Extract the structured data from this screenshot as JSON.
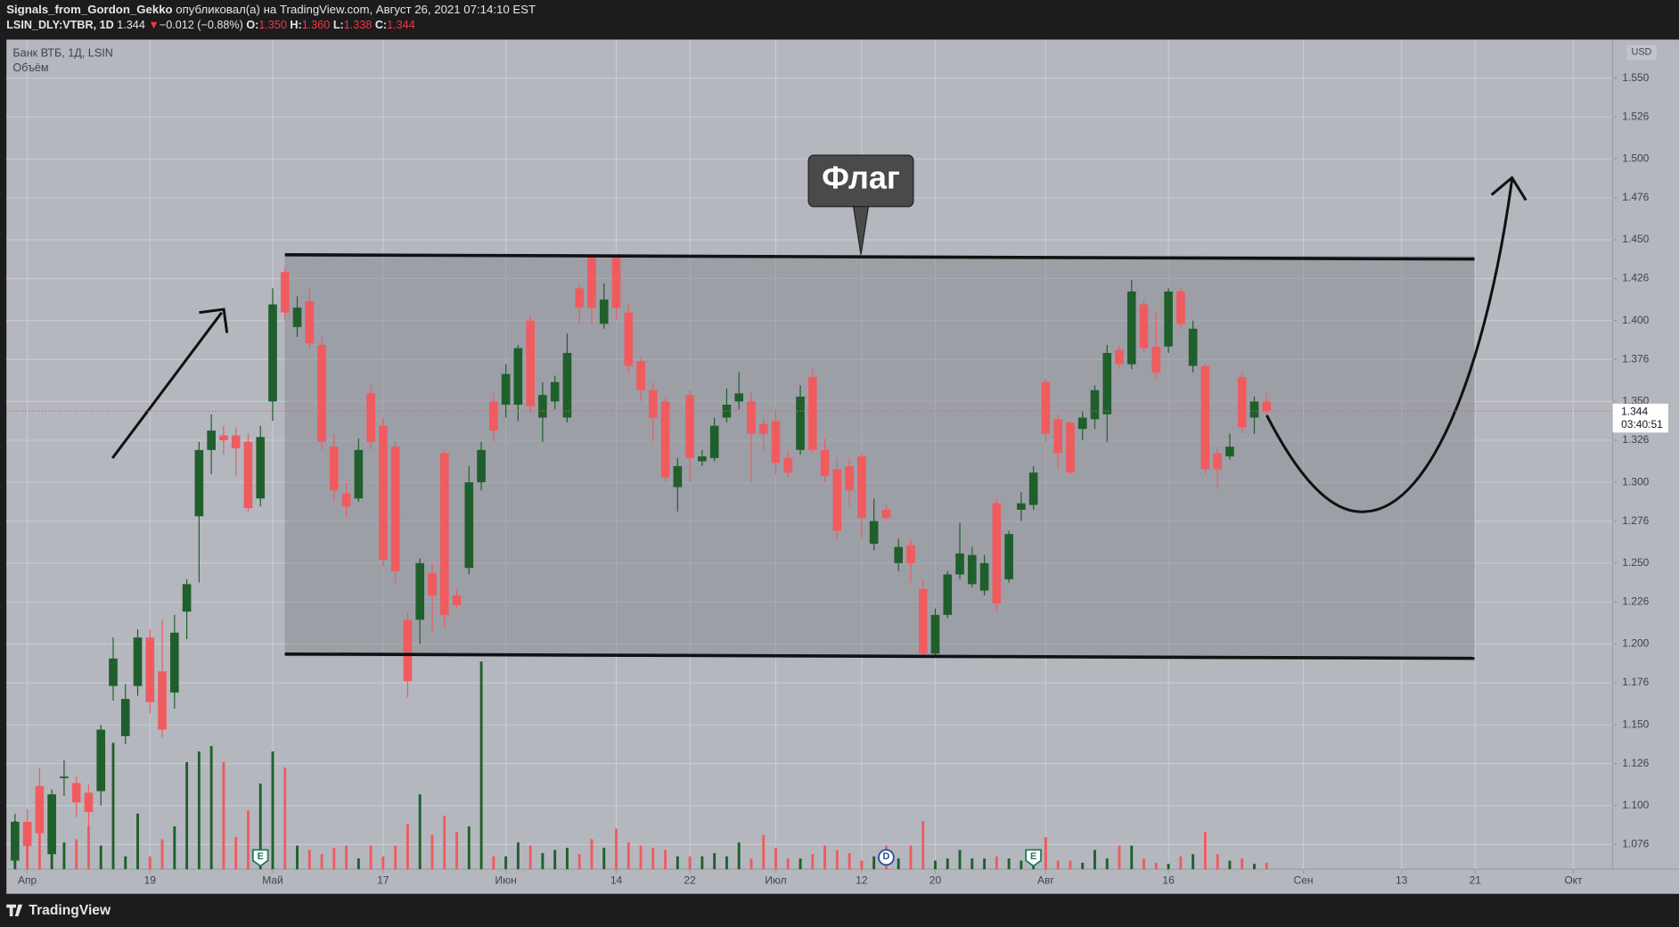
{
  "header": {
    "author": "Signals_from_Gordon_Gekko",
    "published": "опубликовал(а) на TradingView.com, Август 26, 2021 07:14:10 EST",
    "symbol": "LSIN_DLY:VTBR, 1D",
    "last": 1.344,
    "arrow": "▼",
    "change": "−0.012 (−0.88%)",
    "o_label": "O:",
    "o": {
      "value": 1.35,
      "label": "1.350"
    },
    "h_label": "H:",
    "h": {
      "value": 1.36,
      "label": "1.360"
    },
    "l_label": "L:",
    "l": 1.338,
    "c_label": "C:",
    "c": 1.344
  },
  "footer": {
    "brand": "TradingView"
  },
  "chart_data": {
    "type": "candlestick",
    "legend": "Банк ВТБ, 1Д, LSIN",
    "volume_name": "Объём",
    "currency": "USD",
    "annotation": "Флаг",
    "last_price": 1.344,
    "countdown": "03:40:51",
    "up_color": "#1f5f2c",
    "down_color": "#f05b5f",
    "grid": true,
    "xlim": [
      -0.7,
      130.2
    ],
    "ylim": [
      1.0607,
      1.5738
    ],
    "volume_ylim": [
      0,
      775
    ],
    "xticks": [
      {
        "value": 1,
        "label": "Апр"
      },
      {
        "value": 11,
        "label": "19"
      },
      {
        "value": 21,
        "label": "Май"
      },
      {
        "value": 30,
        "label": "17"
      },
      {
        "value": 40,
        "label": "Июн"
      },
      {
        "value": 49,
        "label": "14"
      },
      {
        "value": 55,
        "label": "22"
      },
      {
        "value": 62,
        "label": "Июл"
      },
      {
        "value": 69,
        "label": "12"
      },
      {
        "value": 75,
        "label": "20"
      },
      {
        "value": 84,
        "label": "Авг"
      },
      {
        "value": 94,
        "label": "16"
      },
      {
        "value": 105,
        "label": "Сен"
      },
      {
        "value": 113,
        "label": "13"
      },
      {
        "value": 119,
        "label": "21"
      },
      {
        "value": 127,
        "label": "Окт"
      }
    ],
    "yticks": [
      1.076,
      {
        "value": 1.1,
        "label": "1.100"
      },
      1.126,
      {
        "value": 1.15,
        "label": "1.150"
      },
      1.176,
      {
        "value": 1.2,
        "label": "1.200"
      },
      1.226,
      {
        "value": 1.25,
        "label": "1.250"
      },
      1.276,
      {
        "value": 1.3,
        "label": "1.300"
      },
      1.326,
      {
        "value": 1.35,
        "label": "1.350"
      },
      1.376,
      {
        "value": 1.4,
        "label": "1.400"
      },
      1.426,
      {
        "value": 1.45,
        "label": "1.450"
      },
      1.476,
      {
        "value": 1.5,
        "label": "1.500"
      },
      1.526,
      {
        "value": 1.55,
        "label": "1.550"
      }
    ],
    "events": [
      {
        "index": 20,
        "label": "E"
      },
      {
        "index": 71,
        "label": "D"
      },
      {
        "index": 83,
        "label": "E"
      }
    ],
    "open": [
      1.066,
      1.09,
      1.112,
      1.07,
      1.117,
      1.114,
      1.108,
      1.109,
      1.174,
      1.143,
      1.174,
      1.204,
      1.183,
      1.17,
      1.22,
      1.279,
      1.32,
      1.329,
      1.329,
      1.325,
      1.29,
      1.35,
      1.43,
      1.396,
      1.412,
      1.385,
      1.322,
      1.293,
      1.29,
      1.355,
      1.335,
      1.322,
      1.215,
      1.215,
      1.244,
      1.318,
      1.23,
      1.247,
      1.3,
      1.35,
      1.348,
      1.348,
      1.4,
      1.34,
      1.35,
      1.34,
      1.42,
      1.44,
      1.398,
      1.44,
      1.405,
      1.375,
      1.357,
      1.35,
      1.297,
      1.354,
      1.313,
      1.315,
      1.34,
      1.35,
      1.35,
      1.336,
      1.338,
      1.315,
      1.32,
      1.365,
      1.32,
      1.308,
      1.31,
      1.316,
      1.262,
      1.283,
      1.25,
      1.261,
      1.234,
      1.194,
      1.218,
      1.243,
      1.237,
      1.233,
      1.287,
      1.24,
      1.283,
      1.286,
      1.362,
      1.339,
      1.337,
      1.333,
      1.339,
      1.342,
      1.382,
      1.373,
      1.41,
      1.384,
      1.384,
      1.418,
      1.372,
      1.372,
      1.318,
      1.316,
      1.365,
      1.34,
      1.35
    ],
    "high": [
      1.095,
      1.098,
      1.123,
      1.11,
      1.128,
      1.118,
      1.113,
      1.15,
      1.204,
      1.175,
      1.209,
      1.209,
      1.215,
      1.218,
      1.24,
      1.325,
      1.342,
      1.335,
      1.334,
      1.33,
      1.335,
      1.42,
      1.433,
      1.415,
      1.42,
      1.39,
      1.33,
      1.3,
      1.327,
      1.36,
      1.34,
      1.325,
      1.22,
      1.253,
      1.25,
      1.32,
      1.234,
      1.31,
      1.325,
      1.355,
      1.373,
      1.385,
      1.403,
      1.362,
      1.366,
      1.392,
      1.423,
      1.441,
      1.423,
      1.441,
      1.41,
      1.378,
      1.362,
      1.352,
      1.315,
      1.357,
      1.32,
      1.34,
      1.358,
      1.368,
      1.356,
      1.34,
      1.345,
      1.32,
      1.36,
      1.37,
      1.327,
      1.315,
      1.315,
      1.318,
      1.29,
      1.286,
      1.265,
      1.265,
      1.24,
      1.222,
      1.245,
      1.275,
      1.26,
      1.255,
      1.29,
      1.27,
      1.294,
      1.31,
      1.364,
      1.342,
      1.338,
      1.344,
      1.36,
      1.385,
      1.385,
      1.425,
      1.413,
      1.405,
      1.42,
      1.42,
      1.4,
      1.374,
      1.322,
      1.33,
      1.368,
      1.353,
      1.355
    ],
    "low": [
      1.062,
      1.068,
      1.075,
      1.062,
      1.106,
      1.093,
      1.085,
      1.1,
      1.165,
      1.138,
      1.168,
      1.157,
      1.142,
      1.16,
      1.203,
      1.238,
      1.305,
      1.317,
      1.304,
      1.282,
      1.285,
      1.338,
      1.4,
      1.39,
      1.382,
      1.32,
      1.288,
      1.278,
      1.288,
      1.32,
      1.248,
      1.238,
      1.167,
      1.2,
      1.208,
      1.21,
      1.222,
      1.243,
      1.295,
      1.325,
      1.34,
      1.338,
      1.343,
      1.325,
      1.345,
      1.337,
      1.398,
      1.397,
      1.395,
      1.4,
      1.368,
      1.35,
      1.325,
      1.3,
      1.282,
      1.3,
      1.31,
      1.313,
      1.337,
      1.345,
      1.3,
      1.32,
      1.305,
      1.303,
      1.317,
      1.318,
      1.3,
      1.265,
      1.285,
      1.265,
      1.258,
      1.276,
      1.245,
      1.238,
      1.192,
      1.193,
      1.216,
      1.24,
      1.235,
      1.23,
      1.22,
      1.238,
      1.276,
      1.283,
      1.325,
      1.308,
      1.305,
      1.326,
      1.333,
      1.325,
      1.37,
      1.37,
      1.38,
      1.364,
      1.38,
      1.395,
      1.368,
      1.305,
      1.296,
      1.314,
      1.33,
      1.33,
      1.34
    ],
    "close": [
      1.09,
      1.075,
      1.083,
      1.107,
      1.118,
      1.102,
      1.096,
      1.147,
      1.191,
      1.166,
      1.204,
      1.164,
      1.147,
      1.207,
      1.237,
      1.32,
      1.332,
      1.326,
      1.321,
      1.284,
      1.328,
      1.41,
      1.405,
      1.408,
      1.386,
      1.325,
      1.295,
      1.285,
      1.32,
      1.325,
      1.252,
      1.245,
      1.177,
      1.25,
      1.23,
      1.218,
      1.224,
      1.3,
      1.32,
      1.332,
      1.367,
      1.383,
      1.347,
      1.354,
      1.362,
      1.38,
      1.408,
      1.408,
      1.413,
      1.408,
      1.372,
      1.357,
      1.34,
      1.303,
      1.31,
      1.315,
      1.316,
      1.335,
      1.348,
      1.355,
      1.33,
      1.33,
      1.312,
      1.306,
      1.353,
      1.32,
      1.304,
      1.27,
      1.295,
      1.278,
      1.276,
      1.278,
      1.26,
      1.25,
      1.194,
      1.218,
      1.243,
      1.256,
      1.255,
      1.25,
      1.225,
      1.268,
      1.287,
      1.306,
      1.33,
      1.318,
      1.306,
      1.34,
      1.357,
      1.38,
      1.373,
      1.418,
      1.383,
      1.368,
      1.418,
      1.398,
      1.395,
      1.308,
      1.308,
      1.322,
      1.334,
      1.35,
      1.344
    ],
    "volume": [
      45,
      35,
      78,
      68,
      25,
      28,
      40,
      22,
      118,
      12,
      52,
      12,
      28,
      40,
      100,
      110,
      115,
      100,
      30,
      55,
      80,
      110,
      95,
      22,
      18,
      14,
      20,
      22,
      10,
      22,
      12,
      22,
      42,
      70,
      32,
      50,
      35,
      40,
      194,
      12,
      12,
      25,
      22,
      15,
      18,
      20,
      14,
      28,
      20,
      38,
      25,
      22,
      20,
      18,
      12,
      12,
      12,
      15,
      12,
      25,
      10,
      32,
      20,
      10,
      10,
      14,
      22,
      18,
      15,
      8,
      12,
      22,
      10,
      22,
      45,
      8,
      10,
      18,
      10,
      10,
      12,
      10,
      8,
      12,
      30,
      8,
      8,
      6,
      18,
      10,
      22,
      22,
      10,
      6,
      5,
      12,
      14,
      35,
      14,
      8,
      10,
      5,
      6
    ]
  }
}
